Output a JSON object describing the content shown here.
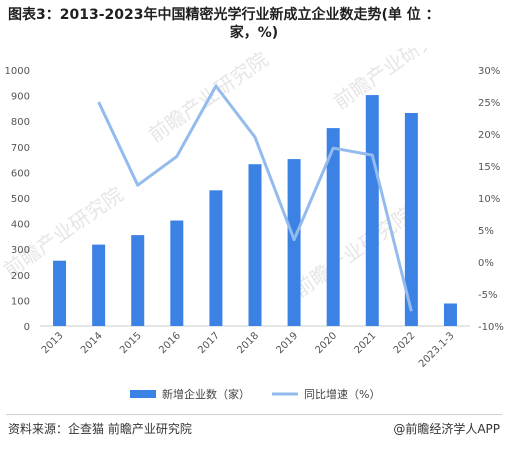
{
  "title_line1": "图表3：2013-2023年中国精密光学行业新成立企业数走势(单 位 ：",
  "title_line2": "家，%)",
  "source": "资料来源：企查猫 前瞻产业研究院",
  "credit": "@前瞻经济学人APP",
  "watermark": "前瞻产业研究院",
  "colors": {
    "bar": "#3b82e4",
    "line": "#94bbed",
    "axis": "#cccccc"
  },
  "chart_data": {
    "type": "bar+line",
    "categories": [
      "2013",
      "2014",
      "2015",
      "2016",
      "2017",
      "2018",
      "2019",
      "2020",
      "2021",
      "2022",
      "2023.1-3"
    ],
    "series": [
      {
        "name": "新增企业数（家）",
        "type": "bar",
        "axis": "left",
        "values": [
          255,
          318,
          355,
          412,
          530,
          632,
          652,
          773,
          902,
          832,
          88
        ]
      },
      {
        "name": "同比增速（%）",
        "type": "line",
        "axis": "right",
        "values": [
          null,
          25,
          12,
          16.5,
          27.5,
          19.5,
          3.5,
          17.8,
          16.7,
          -7.7,
          null
        ]
      }
    ],
    "y_left": {
      "min": 0,
      "max": 1000,
      "step": 100,
      "ticks": [
        "0",
        "100",
        "200",
        "300",
        "400",
        "500",
        "600",
        "700",
        "800",
        "900",
        "1000"
      ]
    },
    "y_right": {
      "min": -10,
      "max": 30,
      "step": 5,
      "ticks": [
        "-10%",
        "-5%",
        "0%",
        "5%",
        "10%",
        "15%",
        "20%",
        "25%",
        "30%"
      ]
    },
    "legend_position": "bottom",
    "grid": false
  }
}
